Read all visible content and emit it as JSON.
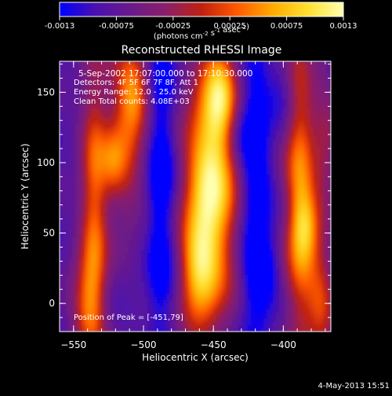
{
  "colorbar": {
    "ticks": [
      "-0.0013",
      "-0.00075",
      "-0.00025",
      "0.00025",
      "0.00075",
      "0.0013"
    ],
    "unit_prefix": "(photons cm",
    "unit_exp1": "-2",
    "unit_mid": " s",
    "unit_exp2": "-1",
    "unit_mid2": " asec",
    "unit_exp3": "-2",
    "unit_suffix": ")",
    "stops": [
      "#0000ff",
      "#4a10b0",
      "#6a1a8a",
      "#8a1f6a",
      "#c02010",
      "#ff5a00",
      "#ffaa00",
      "#ffe030",
      "#ffffb0"
    ]
  },
  "title": "Reconstructed RHESSI Image",
  "annotations": {
    "time": "5-Sep-2002 17:07:00.000 to 17:10:30.000",
    "detectors": "Detectors: 4F 5F 6F 7F 8F, Att 1",
    "energy": "Energy Range: 12.0 - 25.0 keV",
    "clean": "Clean    Total counts: 4.08E+03",
    "peak": "Position of Peak = [-451,79]"
  },
  "footer": {
    "timestamp": "4-May-2013 15:51"
  },
  "chart_data": {
    "type": "heatmap",
    "title": "Reconstructed RHESSI Image",
    "xlabel": "Heliocentric X (arcsec)",
    "ylabel": "Heliocentric Y (arcsec)",
    "xlim": [
      -560,
      -366
    ],
    "ylim": [
      -20,
      172
    ],
    "x_ticks": [
      -550,
      -500,
      -450,
      -400
    ],
    "y_ticks": [
      0,
      50,
      100,
      150
    ],
    "colorbar_range": [
      -0.0013,
      0.0013
    ],
    "peak": {
      "x": -451,
      "y": 79
    },
    "bright_ridges_x": [
      -536,
      -512,
      -451,
      -387,
      -372
    ],
    "dark_troughs_x": [
      -545,
      -486,
      -420,
      -400
    ]
  }
}
